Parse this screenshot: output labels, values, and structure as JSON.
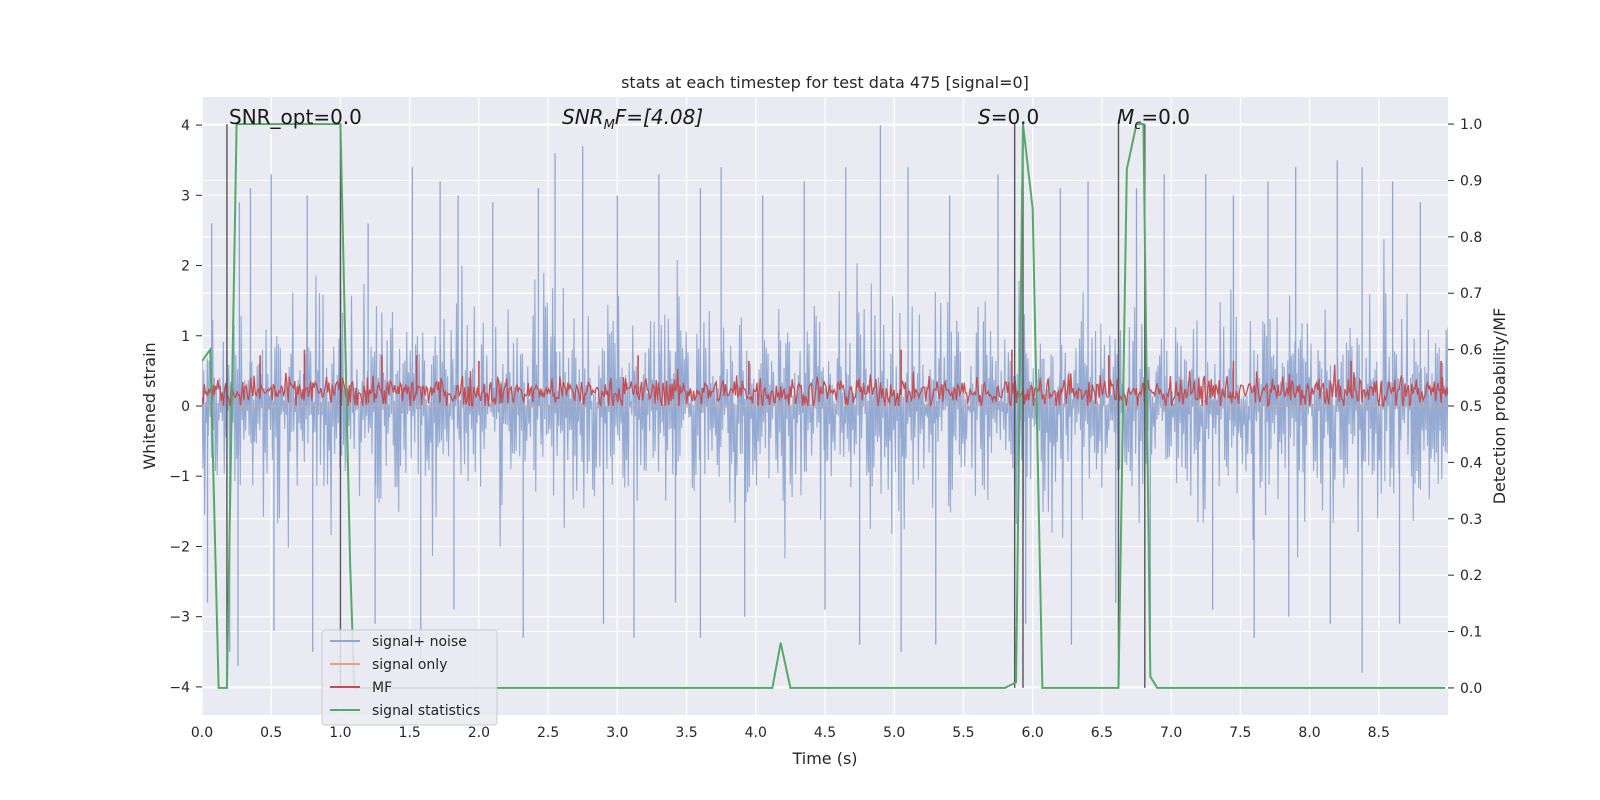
{
  "chart_data": {
    "type": "line",
    "title": "stats at each timestep for test data 475 [signal=0]",
    "xlabel": "Time (s)",
    "ylabel": "Whitened strain",
    "ylabel_right": "Detection probability/MF",
    "xlim": [
      0.0,
      9.0
    ],
    "ylim": [
      -4.4,
      4.4
    ],
    "ylim_right": [
      -0.048,
      1.048
    ],
    "x_ticks": [
      0.0,
      0.5,
      1.0,
      1.5,
      2.0,
      2.5,
      3.0,
      3.5,
      4.0,
      4.5,
      5.0,
      5.5,
      6.0,
      6.5,
      7.0,
      7.5,
      8.0,
      8.5
    ],
    "y_ticks": [
      -4,
      -3,
      -2,
      -1,
      0,
      1,
      2,
      3,
      4
    ],
    "y_ticks_right": [
      0.0,
      0.1,
      0.2,
      0.3,
      0.4,
      0.5,
      0.6,
      0.7,
      0.8,
      0.9,
      1.0
    ],
    "grid": true,
    "legend_position": "lower-left",
    "annotations": {
      "snr_opt": "SNR_opt=0.0",
      "snr_mf_prefix": "SNR",
      "snr_mf_sub": "M",
      "snr_mf_suffix": "F=[4.08]",
      "s": "S",
      "s_value": "=0.0",
      "mc": "M",
      "mc_sub": "c",
      "mc_value": "=0.0"
    },
    "series": [
      {
        "name": "signal+ noise",
        "color": "#8fa6d0",
        "axis": "left",
        "note_range": [
          -4.0,
          4.0
        ],
        "peaks": [
          [
            0.07,
            2.6
          ],
          [
            0.27,
            2.9
          ],
          [
            0.35,
            3.1
          ],
          [
            0.5,
            3.3
          ],
          [
            0.76,
            3.0
          ],
          [
            1.0,
            2.4
          ],
          [
            1.2,
            2.6
          ],
          [
            1.52,
            3.4
          ],
          [
            1.72,
            3.2
          ],
          [
            1.85,
            3.0
          ],
          [
            2.1,
            2.9
          ],
          [
            2.43,
            3.1
          ],
          [
            2.55,
            3.6
          ],
          [
            2.75,
            3.7
          ],
          [
            3.0,
            3.0
          ],
          [
            3.3,
            3.3
          ],
          [
            3.6,
            3.1
          ],
          [
            3.75,
            3.4
          ],
          [
            4.05,
            3.0
          ],
          [
            4.35,
            3.2
          ],
          [
            4.65,
            3.4
          ],
          [
            4.9,
            4.0
          ],
          [
            5.1,
            3.4
          ],
          [
            5.4,
            3.0
          ],
          [
            5.75,
            3.3
          ],
          [
            5.92,
            3.1
          ],
          [
            6.2,
            3.1
          ],
          [
            6.4,
            3.2
          ],
          [
            6.75,
            3.1
          ],
          [
            6.95,
            3.3
          ],
          [
            7.25,
            3.3
          ],
          [
            7.45,
            3.0
          ],
          [
            7.7,
            3.2
          ],
          [
            7.9,
            3.4
          ],
          [
            8.2,
            3.5
          ],
          [
            8.38,
            3.4
          ],
          [
            8.6,
            3.2
          ],
          [
            8.8,
            2.9
          ]
        ],
        "troughs": [
          [
            0.04,
            -2.8
          ],
          [
            0.2,
            -3.5
          ],
          [
            0.26,
            -3.7
          ],
          [
            0.52,
            -3.2
          ],
          [
            0.8,
            -3.5
          ],
          [
            1.25,
            -3.1
          ],
          [
            1.58,
            -3.6
          ],
          [
            1.82,
            -2.9
          ],
          [
            2.32,
            -3.3
          ],
          [
            2.9,
            -3.1
          ],
          [
            3.12,
            -3.3
          ],
          [
            3.42,
            -2.8
          ],
          [
            3.6,
            -3.3
          ],
          [
            3.92,
            -3.0
          ],
          [
            4.5,
            -2.9
          ],
          [
            4.75,
            -3.4
          ],
          [
            5.05,
            -3.5
          ],
          [
            5.3,
            -3.4
          ],
          [
            5.95,
            -3.1
          ],
          [
            6.28,
            -3.4
          ],
          [
            6.6,
            -2.8
          ],
          [
            6.85,
            -3.2
          ],
          [
            7.3,
            -2.9
          ],
          [
            7.6,
            -3.3
          ],
          [
            7.85,
            -3.0
          ],
          [
            8.15,
            -3.1
          ],
          [
            8.38,
            -3.8
          ],
          [
            8.65,
            -3.1
          ]
        ]
      },
      {
        "name": "signal only",
        "color": "#e8a07f",
        "axis": "left",
        "values_const": 0.0
      },
      {
        "name": "MF",
        "color": "#c44e52",
        "axis": "right",
        "note_range": [
          0.5,
          0.6
        ],
        "peaks": [
          [
            0.42,
            0.59
          ],
          [
            0.74,
            0.6
          ],
          [
            1.3,
            0.59
          ],
          [
            1.55,
            0.59
          ],
          [
            2.0,
            0.58
          ],
          [
            3.15,
            0.59
          ],
          [
            3.95,
            0.58
          ],
          [
            5.05,
            0.6
          ],
          [
            5.85,
            0.6
          ],
          [
            6.55,
            0.59
          ],
          [
            7.45,
            0.58
          ],
          [
            8.3,
            0.58
          ],
          [
            8.95,
            0.58
          ]
        ]
      },
      {
        "name": "signal statistics",
        "color": "#55a868",
        "axis": "right",
        "x": [
          0.0,
          0.06,
          0.12,
          0.18,
          0.25,
          0.3,
          0.5,
          0.7,
          0.9,
          1.0,
          1.07,
          1.1,
          1.2,
          1.6,
          2.0,
          3.0,
          4.0,
          4.12,
          4.18,
          4.25,
          4.3,
          5.0,
          5.8,
          5.88,
          5.93,
          6.0,
          6.07,
          6.1,
          6.62,
          6.68,
          6.75,
          6.8,
          6.85,
          6.9,
          7.5,
          8.0,
          8.5,
          8.98
        ],
        "y": [
          0.58,
          0.6,
          0.0,
          0.0,
          1.0,
          1.0,
          1.0,
          1.0,
          1.0,
          1.0,
          0.22,
          0.0,
          0.0,
          0.0,
          0.0,
          0.0,
          0.0,
          0.0,
          0.08,
          0.0,
          0.0,
          0.0,
          0.0,
          0.01,
          1.0,
          0.85,
          0.0,
          0.0,
          0.0,
          0.92,
          1.0,
          1.0,
          0.02,
          0.0,
          0.0,
          0.0,
          0.0,
          0.0
        ]
      }
    ],
    "vertical_lines_x": [
      0.18,
      1.0,
      5.87,
      5.93,
      6.62,
      6.81
    ]
  },
  "legend": [
    {
      "label": "signal+ noise",
      "color": "#8fa6d0"
    },
    {
      "label": "signal only",
      "color": "#e8a07f"
    },
    {
      "label": "MF",
      "color": "#c44e52"
    },
    {
      "label": "signal statistics",
      "color": "#55a868"
    }
  ]
}
